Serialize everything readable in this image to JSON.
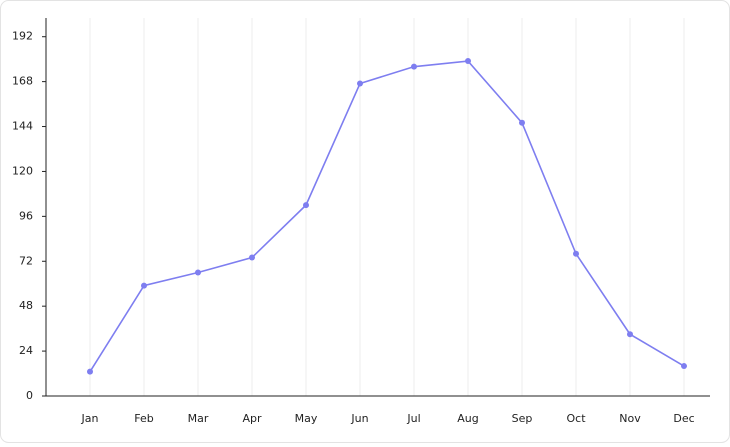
{
  "chart_data": {
    "type": "line",
    "categories": [
      "Jan",
      "Feb",
      "Mar",
      "Apr",
      "May",
      "Jun",
      "Jul",
      "Aug",
      "Sep",
      "Oct",
      "Nov",
      "Dec"
    ],
    "values": [
      13,
      59,
      66,
      74,
      102,
      167,
      176,
      179,
      146,
      76,
      33,
      16
    ],
    "color": "#7e7ef0",
    "ylim": [
      0,
      202
    ],
    "yticks": [
      0,
      24,
      48,
      72,
      96,
      120,
      144,
      168,
      192
    ],
    "grid": true
  }
}
